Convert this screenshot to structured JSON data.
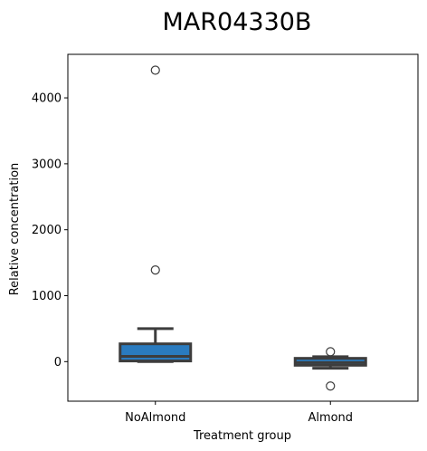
{
  "chart_data": {
    "type": "box",
    "title": "MAR04330B",
    "xlabel": "Treatment group",
    "ylabel": "Relative concentration",
    "categories": [
      "NoAlmond",
      "Almond"
    ],
    "yticks": [
      0,
      1000,
      2000,
      3000,
      4000
    ],
    "ylim": [
      -600,
      4660
    ],
    "grid": false,
    "box_color": "#2a7bbf",
    "line_color": "#3d3d3d",
    "boxes": [
      {
        "name": "NoAlmond",
        "whislo": 0,
        "q1": 10,
        "med": 80,
        "q3": 270,
        "whishi": 500,
        "fliers": [
          1390,
          4420
        ]
      },
      {
        "name": "Almond",
        "whislo": -100,
        "q1": -55,
        "med": -15,
        "q3": 50,
        "whishi": 75,
        "fliers": [
          150,
          -370
        ]
      }
    ]
  }
}
